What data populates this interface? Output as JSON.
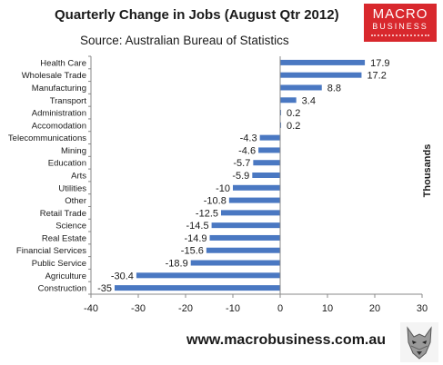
{
  "header": {
    "title": "Quarterly Change in Jobs (August Qtr 2012)",
    "subtitle": "Source: Australian Bureau of Statistics"
  },
  "logo": {
    "line1": "MACRO",
    "line2": "BUSINESS"
  },
  "footer": {
    "url": "www.macrobusiness.com.au"
  },
  "colors": {
    "bar": "#4a78c2",
    "axis": "#888888",
    "logo_bg": "#d8282d"
  },
  "chart_data": {
    "type": "bar",
    "orientation": "horizontal",
    "title": "Quarterly Change in Jobs (August Qtr 2012)",
    "subtitle": "Source: Australian Bureau of Statistics",
    "ylabel": "Thousands",
    "xlim": [
      -40,
      30
    ],
    "xticks": [
      -40,
      -30,
      -20,
      -10,
      0,
      10,
      20,
      30
    ],
    "grid": false,
    "categories": [
      "Health Care",
      "Wholesale Trade",
      "Manufacturing",
      "Transport",
      "Administration",
      "Accomodation",
      "Telecommunications",
      "Mining",
      "Education",
      "Arts",
      "Utilities",
      "Other",
      "Retail Trade",
      "Science",
      "Real Estate",
      "Financial Services",
      "Public Service",
      "Agriculture",
      "Construction"
    ],
    "values": [
      17.9,
      17.2,
      8.8,
      3.4,
      0.2,
      0.2,
      -4.3,
      -4.6,
      -5.7,
      -5.9,
      -10,
      -10.8,
      -12.5,
      -14.5,
      -14.9,
      -15.6,
      -18.9,
      -30.4,
      -35
    ]
  }
}
